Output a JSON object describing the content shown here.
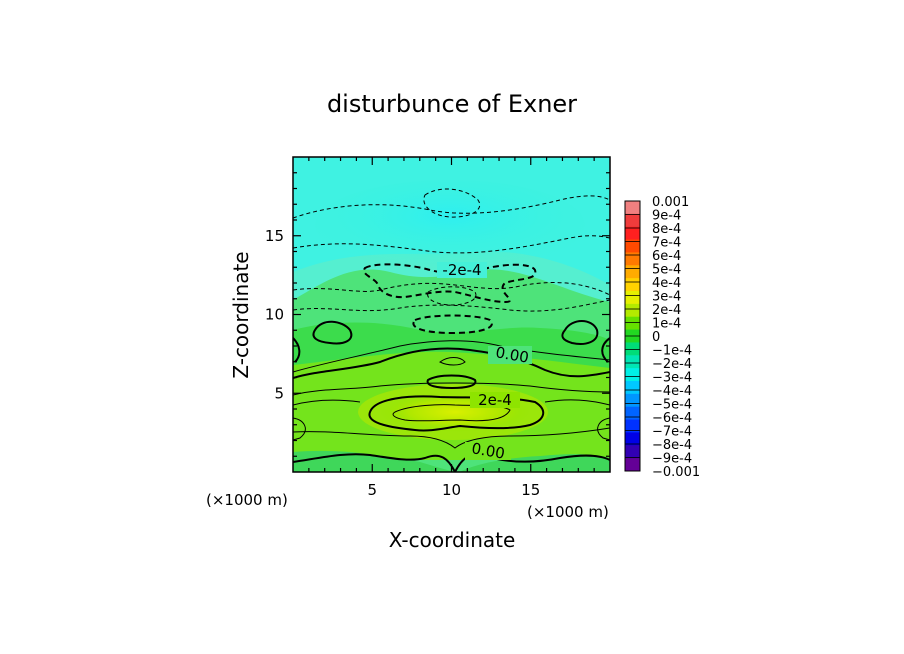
{
  "chart_data": {
    "type": "heatmap",
    "title": "disturbunce of Exner",
    "xlabel": "X-coordinate",
    "ylabel": "Z-coordinate",
    "x_unit": "(×1000 m)",
    "z_unit": "(×1000 m)",
    "xlim": [
      0,
      20
    ],
    "ylim": [
      0,
      20
    ],
    "x_ticks": [
      5,
      10,
      15
    ],
    "y_ticks": [
      5,
      10,
      15
    ],
    "colorbar": {
      "min": -0.001,
      "max": 0.001,
      "labels": [
        "0.001",
        "9e-4",
        "8e-4",
        "7e-4",
        "6e-4",
        "5e-4",
        "4e-4",
        "3e-4",
        "2e-4",
        "1e-4",
        "0",
        "−1e-4",
        "−2e-4",
        "−3e-4",
        "−4e-4",
        "−5e-4",
        "−6e-4",
        "−7e-4",
        "−8e-4",
        "−9e-4",
        "−0.001"
      ],
      "colors": [
        "#f08080",
        "#f03c3c",
        "#ff2020",
        "#ff4a00",
        "#ff7a00",
        "#ffab00",
        "#ffd200",
        "#e6f000",
        "#b4ea00",
        "#66e000",
        "#22d722",
        "#00dc78",
        "#00e6b4",
        "#00f0e6",
        "#00c8ff",
        "#0096ff",
        "#0064ff",
        "#0032ff",
        "#0000e6",
        "#3200b4",
        "#640096"
      ]
    },
    "contour_labels": [
      {
        "text": "-2e-4",
        "x": 11,
        "z": 12.5
      },
      {
        "text": "0.00",
        "x": 13.8,
        "z": 7.3
      },
      {
        "text": "2e-4",
        "x": 12.5,
        "z": 4.6
      },
      {
        "text": "0.00",
        "x": 12.5,
        "z": 1.3
      }
    ],
    "grid": false
  }
}
